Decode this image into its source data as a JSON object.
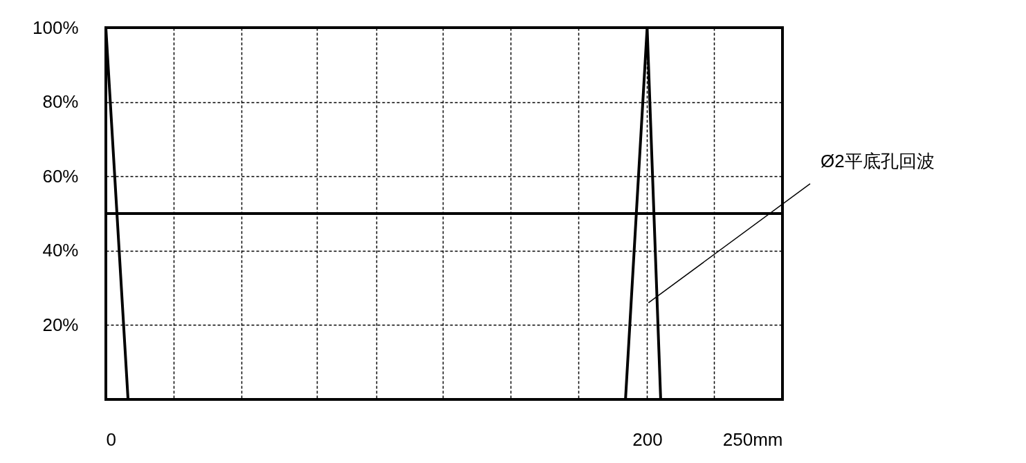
{
  "chart_data": {
    "type": "line",
    "x": [
      0,
      8.2,
      192,
      200,
      205,
      250
    ],
    "series": [
      {
        "color": "#000000",
        "values": [
          100,
          0,
          0,
          100,
          0,
          0
        ]
      }
    ],
    "xlim": [
      0,
      250
    ],
    "xticks": [
      0,
      {
        "value": 25,
        "label": null
      },
      {
        "value": 50,
        "label": null
      },
      {
        "value": 78,
        "label": null
      },
      {
        "value": 100,
        "label": null
      },
      {
        "value": 124.5,
        "label": null
      },
      {
        "value": 149.5,
        "label": null
      },
      {
        "value": 174.6,
        "label": null
      },
      200,
      {
        "value": 224.7,
        "label": null
      },
      {
        "value": 250,
        "label": "250mm"
      }
    ],
    "ylim": [
      0,
      100
    ],
    "yticks": [
      {
        "value": 0,
        "label": null
      },
      {
        "value": 20,
        "label": "20%"
      },
      {
        "value": 40,
        "label": "40%"
      },
      {
        "value": 60,
        "label": "60%"
      },
      {
        "value": 80,
        "label": "80%"
      },
      {
        "value": 100,
        "label": "100%"
      }
    ],
    "ref_lines": [
      {
        "axis": "y",
        "value": 50,
        "color": "#000000",
        "line_style": "solid"
      }
    ],
    "annotations": [
      "Ø2平底孔回波"
    ],
    "grid": true,
    "line_style": "solid",
    "marker": "none"
  }
}
